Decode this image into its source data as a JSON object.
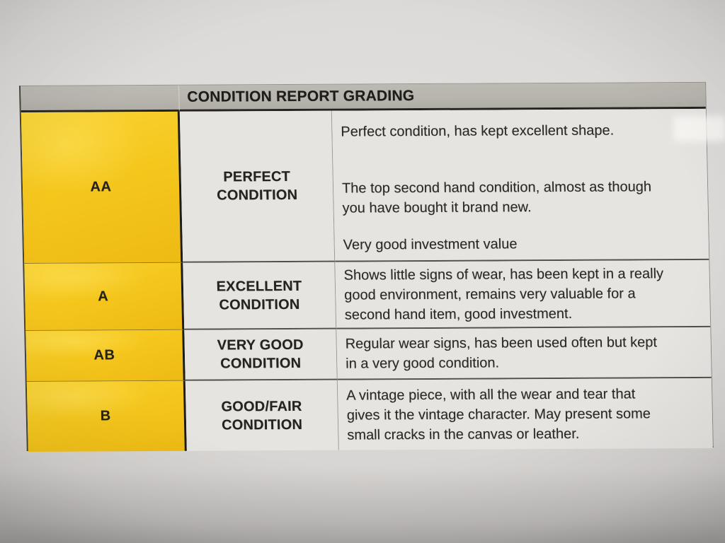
{
  "document": {
    "kind": "printed condition grading table (photographed)",
    "header": {
      "title": "CONDITION REPORT GRADING"
    },
    "rows": [
      {
        "grade": "AA",
        "name_lines": [
          "PERFECT",
          "CONDITION"
        ],
        "desc_blocks": [
          [
            "Perfect condition, has kept excellent shape."
          ],
          [
            "The top second hand condition, almost as though",
            "you have bought it brand new."
          ],
          [
            "Very good investment value"
          ]
        ]
      },
      {
        "grade": "A",
        "name_lines": [
          "EXCELLENT",
          "CONDITION"
        ],
        "desc_blocks": [
          [
            "Shows little signs of wear, has been kept in a really",
            "good environment, remains very valuable for a",
            "second hand item, good investment."
          ]
        ]
      },
      {
        "grade": "AB",
        "name_lines": [
          "VERY GOOD",
          "CONDITION"
        ],
        "desc_blocks": [
          [
            "Regular wear signs, has been used often but kept",
            "in a very good condition."
          ]
        ]
      },
      {
        "grade": "B",
        "name_lines": [
          "GOOD/FAIR",
          "CONDITION"
        ],
        "desc_blocks": [
          [
            "A vintage piece, with all the wear and tear that",
            "gives it the vintage character. May present some",
            "small cracks in the canvas or leather."
          ]
        ]
      }
    ]
  },
  "colors": {
    "yellow": "#f5c71d",
    "yellowLight": "#f9d233",
    "yellowDeep": "#eeba14",
    "headerGray": "#b8b4ae",
    "cellBg": "#e6e4e1",
    "paper": "#d9d6d4",
    "ink": "#23221f"
  }
}
